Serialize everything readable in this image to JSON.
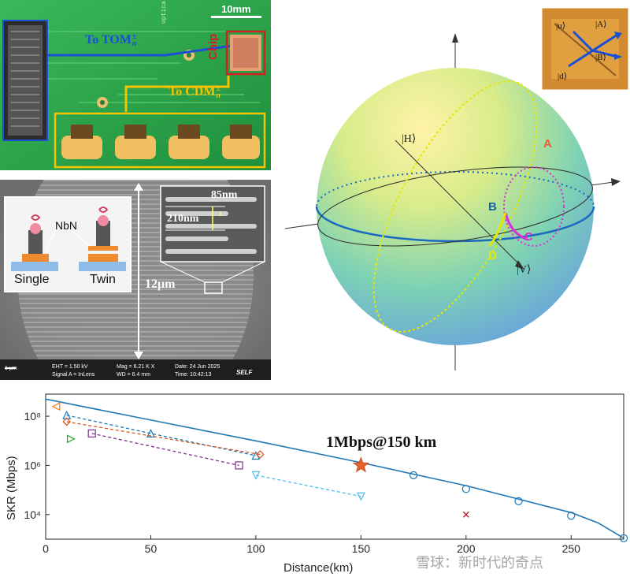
{
  "pcb": {
    "scale_label": "10mm",
    "tom_label": "To TOM",
    "tom_sup": "±",
    "tom_sub": "n",
    "cdm_label": "To CDM",
    "cdm_sup": "±",
    "cdm_sub": "n",
    "chip_label": "Chip",
    "board_text": "optical_brd",
    "colors": {
      "board": "#2aa84a",
      "tom_arrow": "#1a4fd6",
      "cdm_arrow": "#f5c400",
      "chip_box": "#d42020"
    }
  },
  "sem": {
    "nbn_label": "NbN",
    "single_label": "Single",
    "twin_label": "Twin",
    "width_label": "85nm",
    "pitch_label": "210nm",
    "height_label": "12μm",
    "scalebar": "1 μm",
    "meta": {
      "eht": "EHT = 1.50 kV",
      "signal": "Signal A = InLens",
      "mag": "Mag = 6.21 K X",
      "wd": "WD = 6.4 mm",
      "date": "Date: 24 Jun 2025",
      "time": "Time: 10:42:13",
      "brand": "SELF"
    }
  },
  "sphere": {
    "state_h": "|H⟩",
    "state_v": "|V⟩",
    "point_a": "A",
    "point_b": "B",
    "point_c": "C",
    "point_d": "D",
    "inset_a": "|A⟩",
    "inset_b": "|B⟩",
    "inset_u": "|u⟩",
    "inset_d": "|d⟩",
    "colors": {
      "a": "#e0603a",
      "b": "#1565a8",
      "c": "#d633d6",
      "d": "#e6e600",
      "equator": "#1a6ac0"
    }
  },
  "chart_data": {
    "type": "line",
    "xlabel": "Distance(km)",
    "ylabel": "SKR (Mbps)",
    "xlim": [
      0,
      275
    ],
    "ylim_log10": [
      3,
      8.9
    ],
    "xticks": [
      "0",
      "50",
      "100",
      "150",
      "200",
      "250"
    ],
    "yticks": [
      "10⁴",
      "10⁶",
      "10⁸"
    ],
    "annotation": "1Mbps@150 km",
    "highlight": {
      "x": 150,
      "y": 1000000
    },
    "series": [
      {
        "values": [
          [
            0,
            500000000
          ],
          [
            50,
            70000000
          ],
          [
            100,
            10000000
          ],
          [
            150,
            1300000
          ],
          [
            200,
            150000
          ],
          [
            250,
            12000
          ],
          [
            263,
            4500
          ],
          [
            275,
            1100
          ]
        ],
        "color": "#1f77b4",
        "style": "solid"
      },
      {
        "marker": "circle",
        "values": [
          [
            175,
            400000
          ],
          [
            200,
            110000
          ],
          [
            225,
            35000
          ],
          [
            250,
            9000
          ],
          [
            275,
            1100
          ]
        ],
        "color": "#1f77b4"
      },
      {
        "marker": "triangle-left",
        "values": [
          [
            5,
            250000000
          ]
        ],
        "color": "#ff7f0e"
      },
      {
        "marker": "triangle-up",
        "values": [
          [
            10,
            110000000
          ],
          [
            50,
            20000000
          ],
          [
            100,
            2500000
          ]
        ],
        "color": "#1f77b4",
        "style": "dashed"
      },
      {
        "marker": "diamond",
        "values": [
          [
            10,
            60000000
          ],
          [
            102,
            2800000
          ]
        ],
        "color": "#d95319",
        "style": "dashed"
      },
      {
        "marker": "triangle-right",
        "values": [
          [
            12,
            12000000
          ]
        ],
        "color": "#2ca02c"
      },
      {
        "marker": "square",
        "values": [
          [
            22,
            20000000
          ],
          [
            92,
            1000000
          ]
        ],
        "color": "#7e2f8e",
        "style": "dashed"
      },
      {
        "marker": "triangle-down",
        "values": [
          [
            100,
            400000
          ],
          [
            150,
            55000
          ]
        ],
        "color": "#4dbeee",
        "style": "dashed"
      },
      {
        "marker": "x",
        "values": [
          [
            200,
            10000
          ]
        ],
        "color": "#c0102a"
      }
    ]
  },
  "watermark": "雪球：新时代的奇点"
}
